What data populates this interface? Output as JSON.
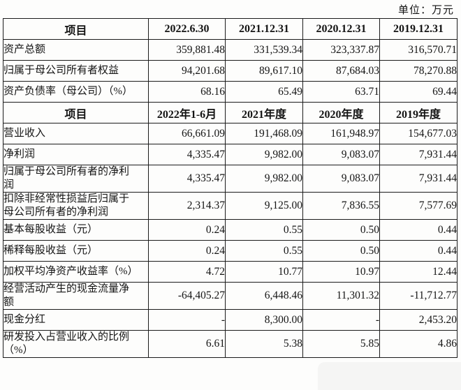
{
  "unit_label": "单位：万元",
  "table1": {
    "headers": [
      "项目",
      "2022.6.30",
      "2021.12.31",
      "2020.12.31",
      "2019.12.31"
    ],
    "rows": [
      {
        "label": "资产总额",
        "values": [
          "359,881.48",
          "331,539.34",
          "323,337.87",
          "316,570.71"
        ]
      },
      {
        "label": "归属于母公司所有者权益",
        "values": [
          "94,201.68",
          "89,617.10",
          "87,684.03",
          "78,270.88"
        ]
      },
      {
        "label": "资产负债率（母公司）（%）",
        "values": [
          "68.16",
          "65.49",
          "63.71",
          "69.44"
        ]
      }
    ]
  },
  "table2": {
    "headers": [
      "项目",
      "2022年1-6月",
      "2021年度",
      "2020年度",
      "2019年度"
    ],
    "rows": [
      {
        "label": "营业收入",
        "values": [
          "66,661.09",
          "191,468.09",
          "161,948.97",
          "154,677.03"
        ]
      },
      {
        "label": "净利润",
        "values": [
          "4,335.47",
          "9,982.00",
          "9,083.07",
          "7,931.44"
        ]
      },
      {
        "label": "归属于母公司所有者的净利\n润",
        "values": [
          "4,335.47",
          "9,982.00",
          "9,083.07",
          "7,931.44"
        ]
      },
      {
        "label": "扣除非经常性损益后归属于\n母公司所有者的净利润",
        "values": [
          "2,314.37",
          "9,125.00",
          "7,836.55",
          "7,577.69"
        ]
      },
      {
        "label": "基本每股收益（元）",
        "values": [
          "0.24",
          "0.55",
          "0.50",
          "0.44"
        ]
      },
      {
        "label": "稀释每股收益（元）",
        "values": [
          "0.24",
          "0.55",
          "0.50",
          "0.44"
        ]
      },
      {
        "label": "加权平均净资产收益率（%）",
        "values": [
          "4.72",
          "10.77",
          "10.97",
          "12.44"
        ]
      },
      {
        "label": "经营活动产生的现金流量净\n额",
        "values": [
          "-64,405.27",
          "6,448.46",
          "11,301.32",
          "-11,712.77"
        ]
      },
      {
        "label": "现金分红",
        "values": [
          "-",
          "8,300.00",
          "-",
          "2,453.20"
        ]
      },
      {
        "label": "研发投入占营业收入的比例\n（%）",
        "values": [
          "6.61",
          "5.38",
          "5.85",
          "4.86"
        ]
      }
    ]
  }
}
